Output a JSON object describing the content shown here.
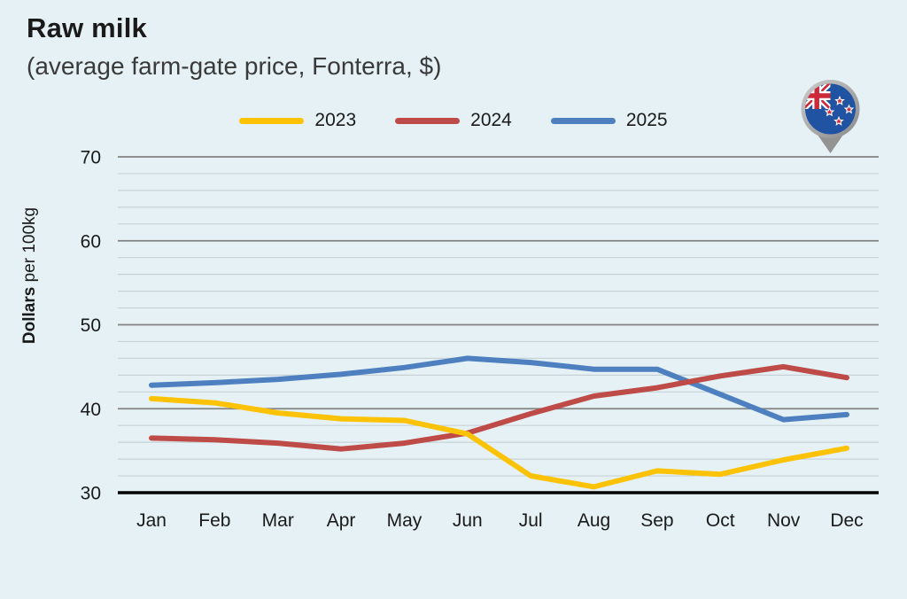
{
  "header": {
    "title": "Raw milk",
    "subtitle": "(average farm-gate price, Fonterra, $)"
  },
  "icons": {
    "top_right": "new-zealand-flag-map-pin"
  },
  "chart_data": {
    "type": "line",
    "title": "Raw milk",
    "subtitle": "(average farm-gate price, Fonterra, $)",
    "xlabel": "",
    "ylabel": "Dollars per 100kg",
    "ylabel_bold_part": "Dollars",
    "ylabel_regular_part": "per 100kg",
    "categories": [
      "Jan",
      "Feb",
      "Mar",
      "Apr",
      "May",
      "Jun",
      "Jul",
      "Aug",
      "Sep",
      "Oct",
      "Nov",
      "Dec"
    ],
    "series": [
      {
        "name": "2023",
        "color": "#FCC306",
        "values": [
          41.2,
          40.7,
          39.5,
          38.8,
          38.6,
          37.0,
          32.0,
          30.7,
          32.6,
          32.2,
          33.9,
          35.3
        ]
      },
      {
        "name": "2024",
        "color": "#BE4B48",
        "values": [
          36.5,
          36.3,
          35.9,
          35.2,
          35.9,
          37.1,
          39.4,
          41.5,
          42.5,
          43.9,
          45.0,
          43.7
        ]
      },
      {
        "name": "2025",
        "color": "#4E80C0",
        "values": [
          42.8,
          43.1,
          43.5,
          44.1,
          44.9,
          46.0,
          45.5,
          44.7,
          44.7,
          41.7,
          38.7,
          39.3
        ]
      }
    ],
    "ylim": [
      30,
      70
    ],
    "y_tick_labels": [
      "30",
      "40",
      "50",
      "60",
      "70"
    ],
    "y_major_step": 10,
    "y_minor_step": 2,
    "grid": true,
    "legend_position": "top"
  },
  "colors": {
    "background": "#E5F1F5",
    "text": "#1A1A1A",
    "subtitle_text": "#3A3A3A",
    "major_gridline": "#828282",
    "minor_gridline": "#C7D2D6",
    "baseline": "#000000"
  }
}
